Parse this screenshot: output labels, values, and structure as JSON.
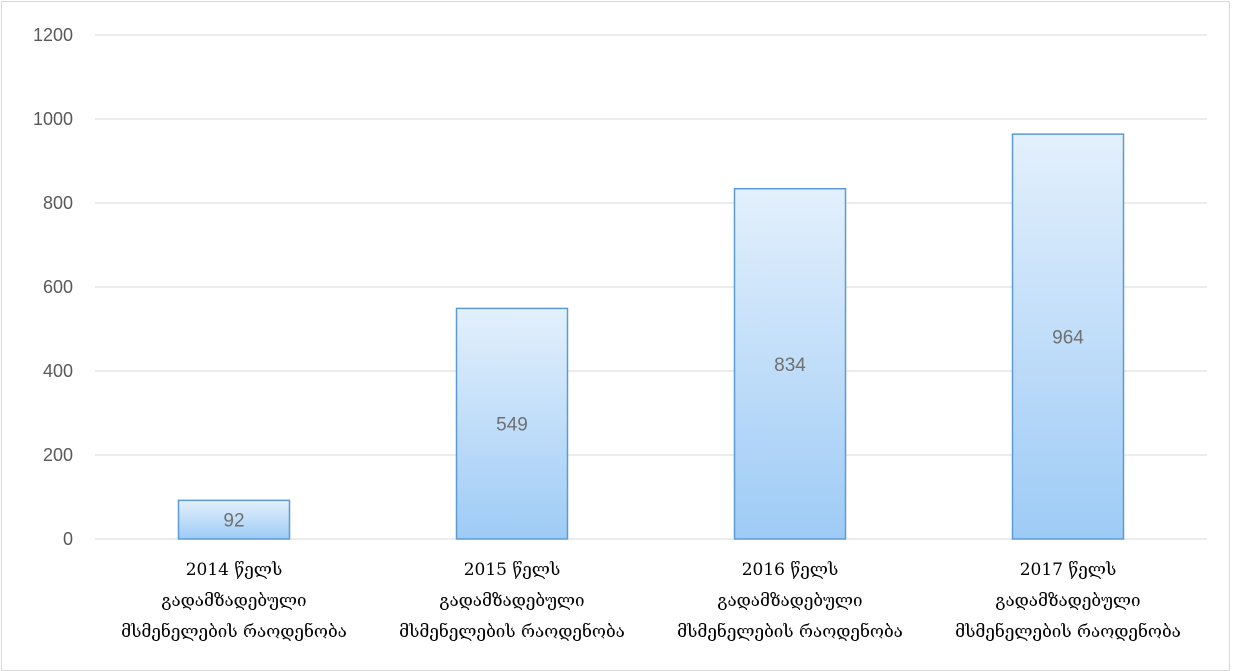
{
  "chart_data": {
    "type": "bar",
    "categories": [
      [
        "2014 წელს",
        "გადამზადებული",
        "მსმენელების რაოდენობა"
      ],
      [
        "2015 წელს",
        "გადამზადებული",
        "მსმენელების რაოდენობა"
      ],
      [
        "2016 წელს",
        "გადამზადებული",
        "მსმენელების რაოდენობა"
      ],
      [
        "2017 წელს",
        "გადამზადებული",
        "მსმენელების რაოდენობა"
      ]
    ],
    "values": [
      92,
      549,
      834,
      964
    ],
    "data_labels": [
      "92",
      "549",
      "834",
      "964"
    ],
    "y_ticks": [
      "0",
      "200",
      "400",
      "600",
      "800",
      "1000",
      "1200"
    ],
    "ylim": [
      0,
      1200
    ],
    "grid": true,
    "legend": "none",
    "colors": {
      "bar_fill_top": "#e3f0fc",
      "bar_fill_bottom": "#9ecbf6",
      "bar_stroke": "#5b9bd5",
      "grid": "#d9d9d9"
    }
  }
}
